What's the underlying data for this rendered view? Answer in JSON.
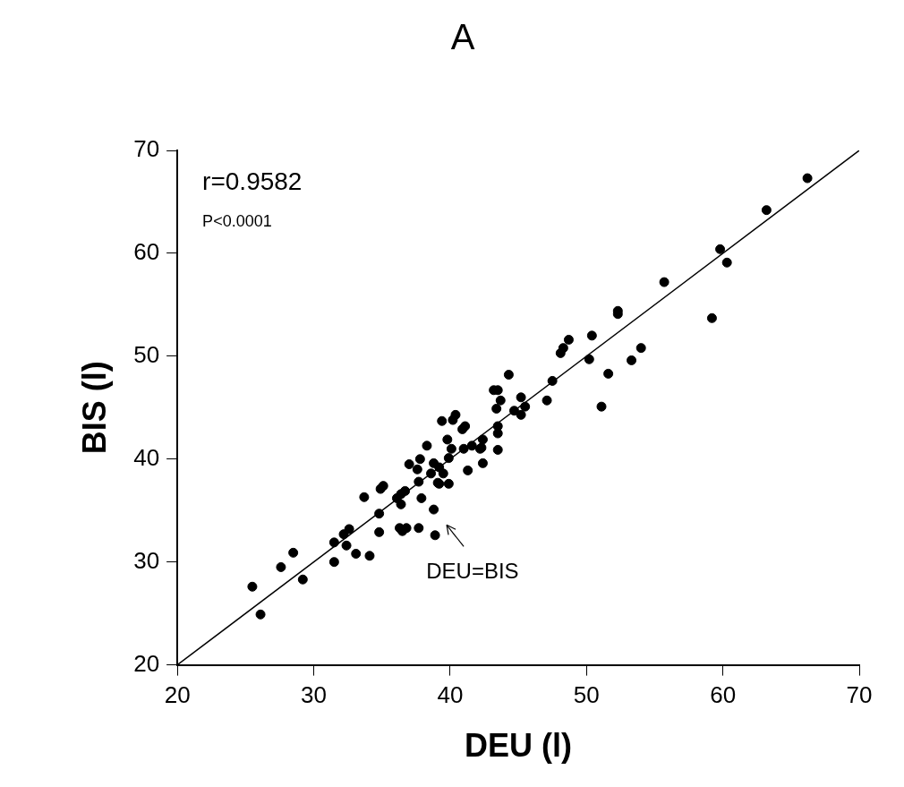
{
  "chart_data": {
    "type": "scatter",
    "title": "A",
    "xlabel": "DEU (l)",
    "ylabel": "BIS (l)",
    "xlim": [
      20,
      70
    ],
    "xticks": [
      20,
      30,
      40,
      50,
      60,
      70
    ],
    "ylim": [
      20,
      70
    ],
    "yticks": [
      20,
      30,
      40,
      50,
      60,
      70
    ],
    "grid": false,
    "legend": false,
    "annotations": [
      "r=0.9582",
      "P<0.0001",
      "DEU=BIS"
    ],
    "series": [
      {
        "marker": "circle",
        "color": "#000000",
        "x": [
          25.5,
          26.1,
          27.6,
          28.5,
          29.2,
          31.5,
          31.5,
          32.4,
          32.2,
          32.6,
          33.1,
          34.1,
          33.7,
          34.8,
          34.8,
          34.9,
          35.1,
          36.4,
          36.1,
          36.7,
          36.4,
          36.3,
          36.8,
          36.5,
          37.7,
          37.9,
          38.8,
          38.9,
          37.0,
          37.8,
          37.6,
          37.7,
          38.3,
          38.8,
          38.6,
          39.1,
          44.3,
          43.2,
          43.5,
          43.7,
          43.4,
          45.2,
          45.5,
          44.7,
          45.2,
          47.1,
          47.5,
          43.5,
          43.5,
          43.5,
          42.4,
          42.3,
          42.4,
          41.3,
          39.4,
          40.2,
          40.4,
          40.9,
          41.1,
          39.8,
          40.1,
          41.0,
          41.6,
          42.2,
          39.9,
          39.2,
          39.5,
          39.2,
          39.9,
          66.2,
          63.2,
          59.8,
          60.3,
          59.2,
          55.7,
          52.3,
          52.3,
          50.4,
          50.2,
          48.7,
          48.3,
          48.1,
          54.0,
          53.3,
          51.6,
          51.1
        ],
        "values": [
          27.6,
          24.9,
          29.5,
          30.9,
          28.3,
          30.0,
          31.9,
          31.6,
          32.7,
          33.2,
          30.8,
          30.6,
          36.3,
          34.7,
          32.9,
          37.1,
          37.4,
          36.6,
          36.2,
          36.9,
          35.6,
          33.3,
          33.3,
          33.0,
          33.3,
          36.2,
          35.1,
          32.6,
          39.5,
          40.0,
          39.0,
          37.8,
          41.3,
          39.6,
          38.6,
          37.7,
          48.2,
          46.7,
          46.7,
          45.7,
          44.9,
          46.0,
          45.1,
          44.7,
          44.3,
          45.7,
          47.6,
          43.2,
          42.5,
          40.9,
          41.9,
          41.1,
          39.6,
          38.9,
          43.7,
          43.8,
          44.3,
          42.9,
          43.2,
          41.9,
          41.0,
          41.0,
          41.3,
          41.0,
          40.1,
          39.2,
          38.6,
          37.6,
          37.6,
          67.3,
          64.2,
          60.4,
          59.1,
          53.7,
          57.2,
          54.4,
          54.1,
          52.0,
          49.7,
          51.6,
          50.8,
          50.3,
          50.8,
          49.6,
          48.3,
          45.1
        ]
      },
      {
        "type": "line",
        "marker": "none",
        "color": "#000000",
        "x": [
          20,
          70
        ],
        "values": [
          20,
          70
        ]
      }
    ]
  }
}
